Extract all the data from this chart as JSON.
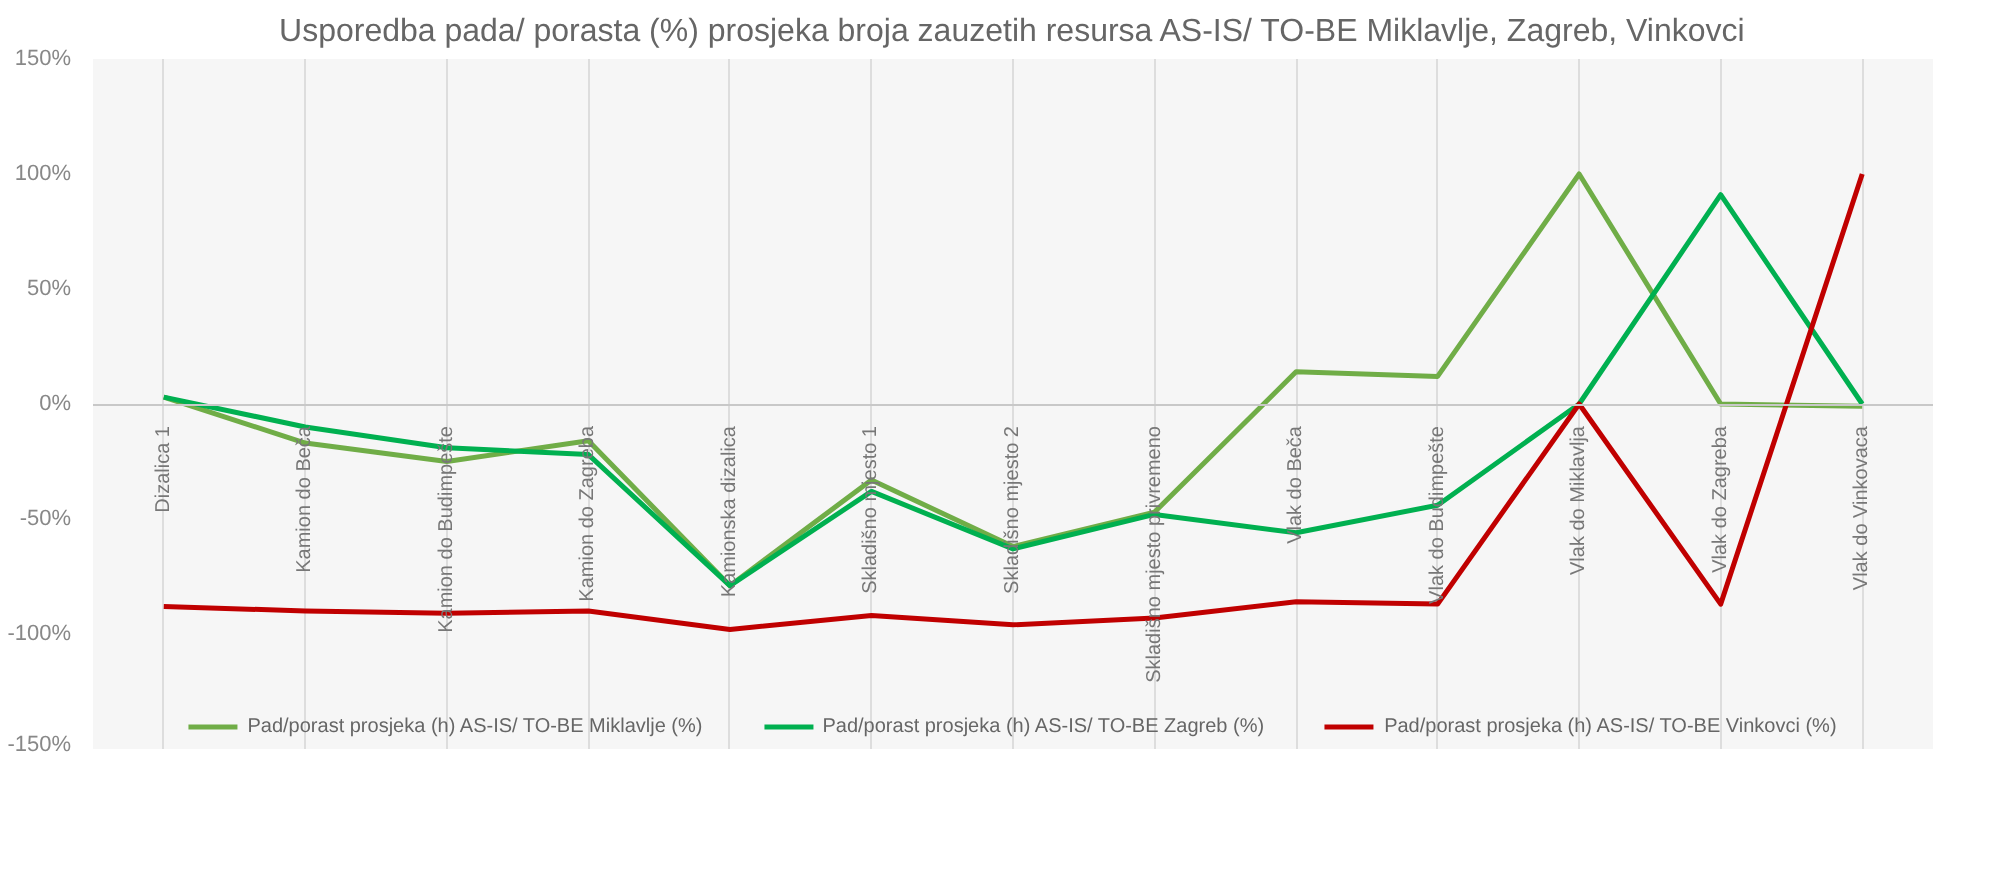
{
  "chart_data": {
    "type": "line",
    "title": "Usporedba pada/ porasta (%) prosjeka broja zauzetih resursa AS-IS/ TO-BE Miklavlje, Zagreb, Vinkovci",
    "categories": [
      "Dizalica 1",
      "Kamion do Beča",
      "Kamion do Budimpešte",
      "Kamion do Zagreba",
      "Kamionska dizalica",
      "Skladišno mjesto 1",
      "Skladišno mjesto 2",
      "Skladišno mjesto privremeno",
      "Vlak do Beča",
      "Vlak do Budimpešte",
      "Vlak do Miklavlja",
      "Vlak do Zagreba",
      "Vlak do Vinkovaca"
    ],
    "series": [
      {
        "name": "Pad/porast prosjeka (h) AS-IS/ TO-BE Miklavlje (%)",
        "color": "#70ad47",
        "values": [
          3,
          -17,
          -25,
          -16,
          -79,
          -33,
          -62,
          -47,
          14,
          12,
          100,
          0,
          -1
        ]
      },
      {
        "name": "Pad/porast prosjeka (h) AS-IS/ TO-BE Zagreb (%)",
        "color": "#00b050",
        "values": [
          3,
          -10,
          -19,
          -22,
          -79,
          -38,
          -63,
          -48,
          -56,
          -44,
          0,
          91,
          0
        ]
      },
      {
        "name": "Pad/porast prosjeka (h) AS-IS/ TO-BE Vinkovci (%)",
        "color": "#c00000",
        "values": [
          -88,
          -90,
          -91,
          -90,
          -98,
          -92,
          -96,
          -93,
          -86,
          -87,
          0,
          -87,
          100
        ]
      }
    ],
    "ylim": [
      -150,
      150
    ],
    "yticks": [
      {
        "value": -150,
        "label": "-150%"
      },
      {
        "value": -100,
        "label": "-100%"
      },
      {
        "value": -50,
        "label": "-50%"
      },
      {
        "value": 0,
        "label": "0%"
      },
      {
        "value": 50,
        "label": "50%"
      },
      {
        "value": 100,
        "label": "100%"
      },
      {
        "value": 150,
        "label": "150%"
      }
    ],
    "grid": "x",
    "legend": "bottom",
    "marker": "none",
    "line_style": "solid"
  }
}
